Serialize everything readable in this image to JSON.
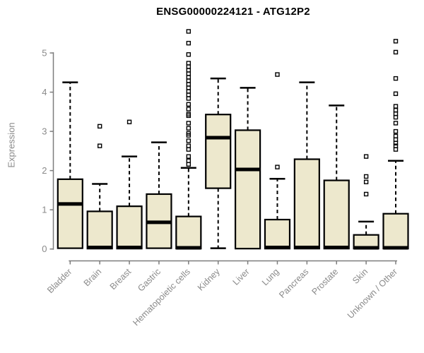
{
  "title": "ENSG00000224121 - ATG12P2",
  "colors": {
    "box_fill": "#EDE8CD",
    "box_border": "#000000",
    "median": "#000000",
    "whisker": "#000000",
    "outlier": "#000000",
    "axis": "#7d7d7d",
    "tick_label": "#8a8a8a",
    "title": "#000000",
    "background": "#ffffff"
  },
  "chart_data": {
    "type": "boxplot",
    "title": "ENSG00000224121 - ATG12P2",
    "xlabel": "",
    "ylabel": "Expression",
    "ylim": [
      0,
      5
    ],
    "yticks": [
      0,
      1,
      2,
      3,
      4,
      5
    ],
    "grid": false,
    "legend": "none",
    "categories": [
      "Bladder",
      "Brain",
      "Breast",
      "Gastric",
      "Hematopoietic cells",
      "Kidney",
      "Liver",
      "Lung",
      "Pancreas",
      "Prostate",
      "Skin",
      "Unknown / Other"
    ],
    "boxes": [
      {
        "name": "Bladder",
        "whisker_low": 0,
        "q1": 0.02,
        "median": 1.15,
        "q3": 1.78,
        "whisker_high": 4.25,
        "outliers": []
      },
      {
        "name": "Brain",
        "whisker_low": 0,
        "q1": 0.01,
        "median": 0.04,
        "q3": 0.96,
        "whisker_high": 1.66,
        "outliers": [
          2.63,
          3.13
        ]
      },
      {
        "name": "Breast",
        "whisker_low": 0,
        "q1": 0.01,
        "median": 0.04,
        "q3": 1.09,
        "whisker_high": 2.36,
        "outliers": [
          3.24
        ]
      },
      {
        "name": "Gastric",
        "whisker_low": 0,
        "q1": 0.02,
        "median": 0.68,
        "q3": 1.4,
        "whisker_high": 2.72,
        "outliers": []
      },
      {
        "name": "Hematopoietic cells",
        "whisker_low": 0,
        "q1": 0.01,
        "median": 0.03,
        "q3": 0.83,
        "whisker_high": 2.07,
        "outliers": [
          2.16,
          2.25,
          2.36,
          2.54,
          2.63,
          2.76,
          2.9,
          2.95,
          3.08,
          3.21,
          3.4,
          3.44,
          3.57,
          3.69,
          3.84,
          3.93,
          4.02,
          4.11,
          4.2,
          4.29,
          4.38,
          4.47,
          4.56,
          4.65,
          4.74,
          4.96,
          5.25,
          5.55
        ]
      },
      {
        "name": "Kidney",
        "whisker_low": 0.02,
        "q1": 1.55,
        "median": 2.84,
        "q3": 3.43,
        "whisker_high": 4.35,
        "outliers": []
      },
      {
        "name": "Liver",
        "whisker_low": 0,
        "q1": 0.01,
        "median": 2.03,
        "q3": 3.03,
        "whisker_high": 4.11,
        "outliers": []
      },
      {
        "name": "Lung",
        "whisker_low": 0,
        "q1": 0.01,
        "median": 0.04,
        "q3": 0.75,
        "whisker_high": 1.79,
        "outliers": [
          2.09,
          4.45
        ]
      },
      {
        "name": "Pancreas",
        "whisker_low": 0,
        "q1": 0.01,
        "median": 0.04,
        "q3": 2.29,
        "whisker_high": 4.25,
        "outliers": []
      },
      {
        "name": "Prostate",
        "whisker_low": 0,
        "q1": 0.01,
        "median": 0.04,
        "q3": 1.75,
        "whisker_high": 3.66,
        "outliers": []
      },
      {
        "name": "Skin",
        "whisker_low": 0,
        "q1": 0.01,
        "median": 0.03,
        "q3": 0.36,
        "whisker_high": 0.7,
        "outliers": [
          1.4,
          1.71,
          1.85,
          2.36
        ]
      },
      {
        "name": "Unknown / Other",
        "whisker_low": 0,
        "q1": 0.01,
        "median": 0.03,
        "q3": 0.9,
        "whisker_high": 2.25,
        "outliers": [
          2.54,
          2.63,
          2.7,
          2.79,
          2.88,
          3.0,
          3.21,
          3.36,
          3.45,
          3.54,
          3.64,
          3.96,
          4.35,
          5.02,
          5.3
        ]
      }
    ]
  }
}
